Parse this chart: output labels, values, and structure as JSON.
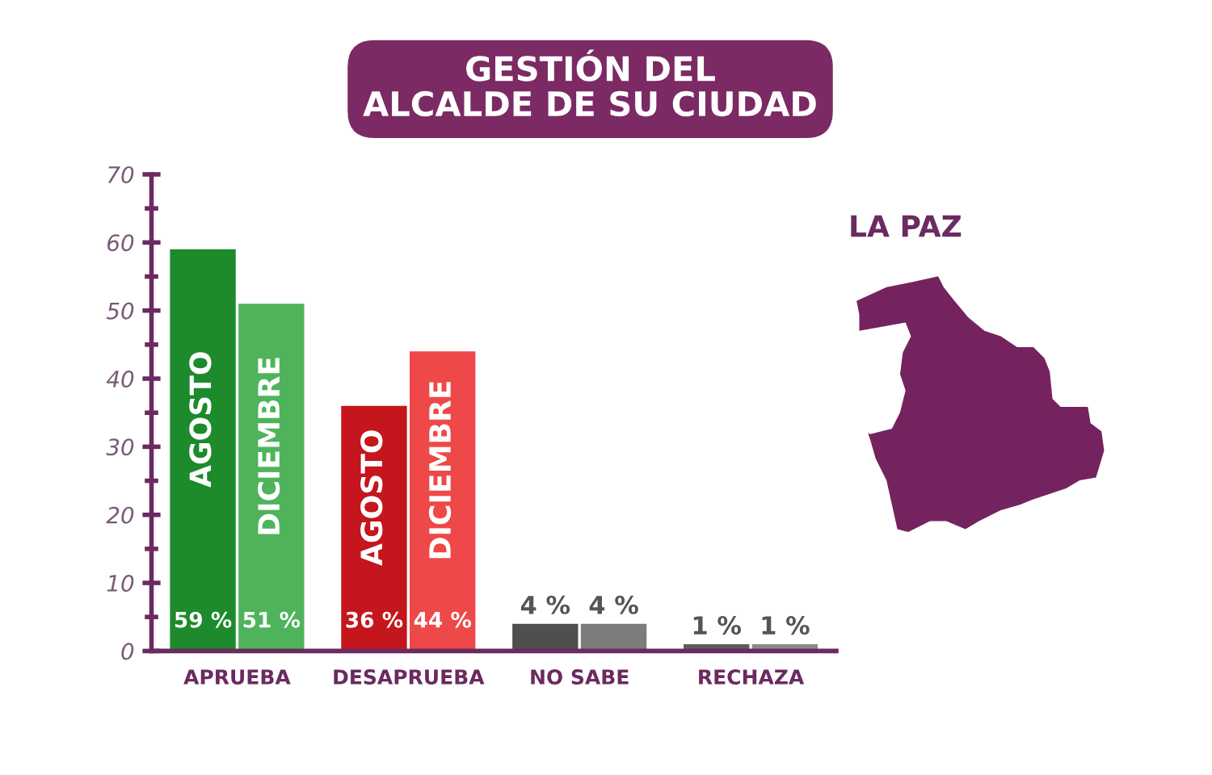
{
  "chart_data": {
    "type": "bar",
    "title": "GESTIÓN DEL\nALCALDE DE SU CIUDAD",
    "subtitle": "LA PAZ",
    "categories": [
      "APRUEBA",
      "DESAPRUEBA",
      "NO SABE",
      "RECHAZA"
    ],
    "series": [
      {
        "name": "AGOSTO",
        "colors": [
          "#1d8a2c",
          "#c4161c",
          "#4f4f4f",
          "#5c5c5c"
        ],
        "values": [
          59,
          36,
          4,
          1
        ],
        "value_labels": [
          "59 %",
          "36 %",
          "4 %",
          "1 %"
        ]
      },
      {
        "name": "DICIEMBRE",
        "colors": [
          "#4fb35c",
          "#ee4848",
          "#7c7c7c",
          "#8a8a8a"
        ],
        "values": [
          51,
          44,
          4,
          1
        ],
        "value_labels": [
          "51 %",
          "44 %",
          "4 %",
          "1 %"
        ]
      }
    ],
    "ylim": [
      0,
      70
    ],
    "yticks": [
      0,
      10,
      20,
      30,
      40,
      50,
      60,
      70
    ]
  }
}
